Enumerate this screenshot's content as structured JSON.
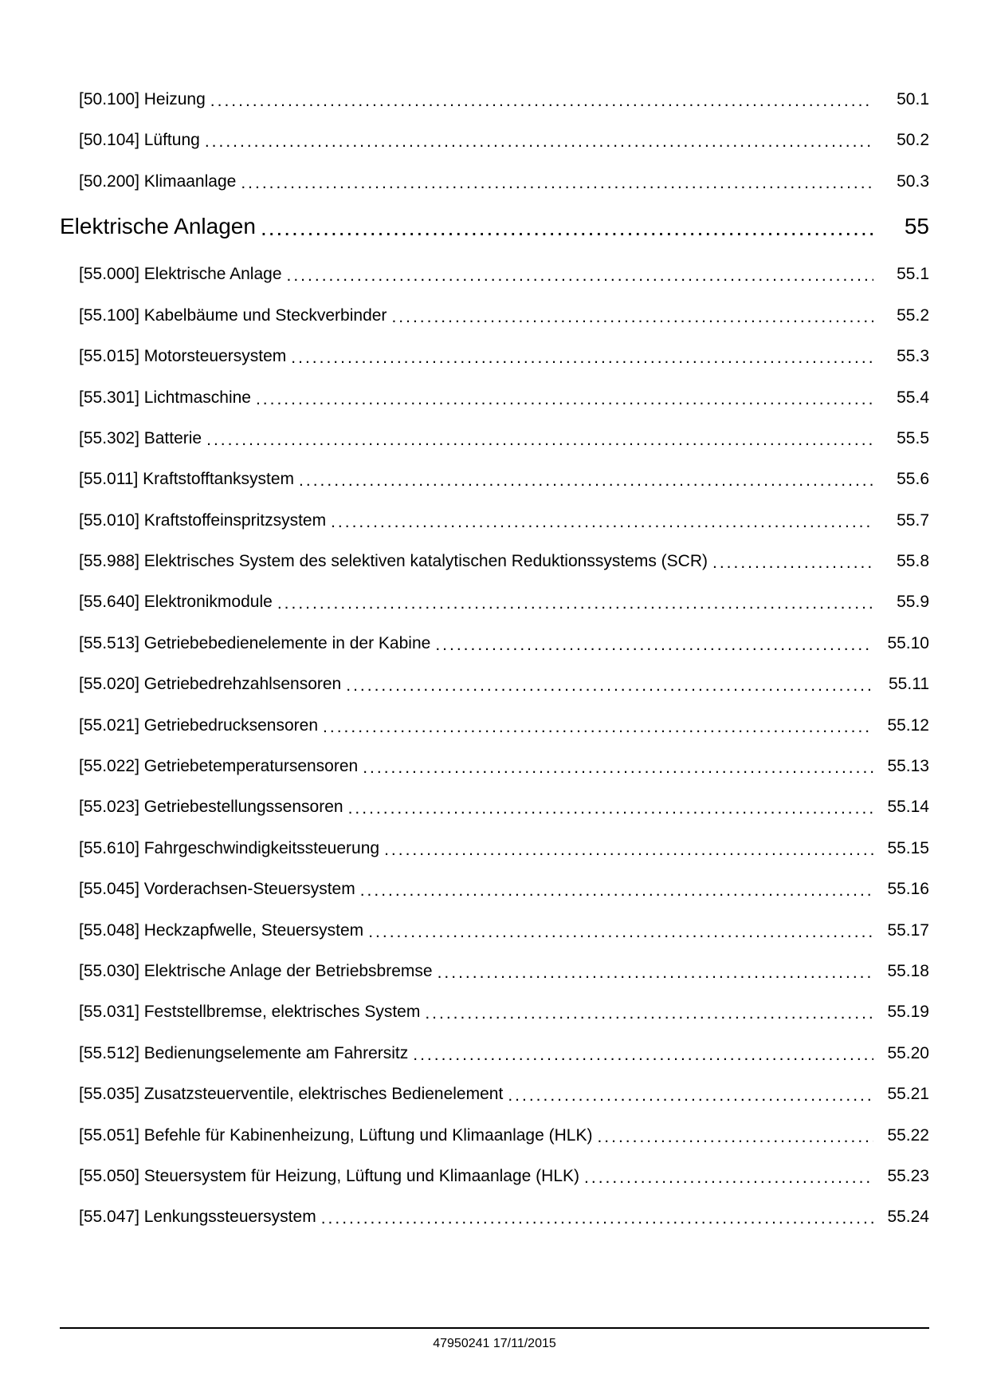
{
  "footer": "47950241 17/11/2015",
  "leader_char": ".",
  "entries": [
    {
      "level": "sub",
      "label": "[50.100] Heizung",
      "page": "50.1"
    },
    {
      "level": "sub",
      "label": "[50.104] Lüftung",
      "page": "50.2"
    },
    {
      "level": "sub",
      "label": "[50.200] Klimaanlage",
      "page": "50.3"
    },
    {
      "level": "section",
      "label": "Elektrische Anlagen",
      "page": "55"
    },
    {
      "level": "sub",
      "label": "[55.000] Elektrische Anlage",
      "page": "55.1"
    },
    {
      "level": "sub",
      "label": "[55.100] Kabelbäume und Steckverbinder",
      "page": "55.2"
    },
    {
      "level": "sub",
      "label": "[55.015] Motorsteuersystem",
      "page": "55.3"
    },
    {
      "level": "sub",
      "label": "[55.301] Lichtmaschine",
      "page": "55.4"
    },
    {
      "level": "sub",
      "label": "[55.302] Batterie",
      "page": "55.5"
    },
    {
      "level": "sub",
      "label": "[55.011] Kraftstofftanksystem",
      "page": "55.6"
    },
    {
      "level": "sub",
      "label": "[55.010] Kraftstoffeinspritzsystem",
      "page": "55.7"
    },
    {
      "level": "sub",
      "label": "[55.988] Elektrisches System des selektiven katalytischen Reduktionssystems (SCR)",
      "page": "55.8"
    },
    {
      "level": "sub",
      "label": "[55.640] Elektronikmodule",
      "page": "55.9"
    },
    {
      "level": "sub",
      "label": "[55.513] Getriebebedienelemente in der Kabine",
      "page": "55.10"
    },
    {
      "level": "sub",
      "label": "[55.020] Getriebedrehzahlsensoren",
      "page": "55.11"
    },
    {
      "level": "sub",
      "label": "[55.021] Getriebedrucksensoren",
      "page": "55.12"
    },
    {
      "level": "sub",
      "label": "[55.022] Getriebetemperatursensoren",
      "page": "55.13"
    },
    {
      "level": "sub",
      "label": "[55.023] Getriebestellungssensoren",
      "page": "55.14"
    },
    {
      "level": "sub",
      "label": "[55.610] Fahrgeschwindigkeitssteuerung",
      "page": "55.15"
    },
    {
      "level": "sub",
      "label": "[55.045] Vorderachsen-Steuersystem",
      "page": "55.16"
    },
    {
      "level": "sub",
      "label": "[55.048] Heckzapfwelle, Steuersystem",
      "page": "55.17"
    },
    {
      "level": "sub",
      "label": "[55.030] Elektrische Anlage der Betriebsbremse",
      "page": "55.18"
    },
    {
      "level": "sub",
      "label": "[55.031] Feststellbremse, elektrisches System",
      "page": "55.19"
    },
    {
      "level": "sub",
      "label": "[55.512] Bedienungselemente am Fahrersitz",
      "page": "55.20"
    },
    {
      "level": "sub",
      "label": "[55.035] Zusatzsteuerventile, elektrisches Bedienelement",
      "page": "55.21"
    },
    {
      "level": "sub",
      "label": "[55.051] Befehle für Kabinenheizung, Lüftung und Klimaanlage (HLK)",
      "page": "55.22"
    },
    {
      "level": "sub",
      "label": "[55.050] Steuersystem für Heizung, Lüftung und Klimaanlage (HLK)",
      "page": "55.23"
    },
    {
      "level": "sub",
      "label": "[55.047] Lenkungssteuersystem",
      "page": "55.24"
    }
  ]
}
